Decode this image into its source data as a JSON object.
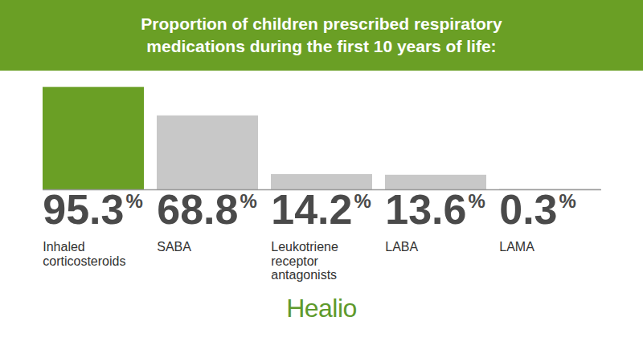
{
  "chart_data": {
    "type": "bar",
    "title": "Proportion of children prescribed respiratory\nmedications during the first 10 years of life:",
    "categories": [
      "Inhaled\ncorticosteroids",
      "SABA",
      "Leukotriene\nreceptor\nantagonists",
      "LABA",
      "LAMA"
    ],
    "values": [
      95.3,
      68.8,
      14.2,
      13.6,
      0.3
    ],
    "value_labels": [
      "95.3%",
      "68.8%",
      "14.2%",
      "13.6%",
      "0.3%"
    ],
    "colors": [
      "#6a9f25",
      "#c8c8c8",
      "#c8c8c8",
      "#c8c8c8",
      "#c8c8c8"
    ],
    "ylim": [
      0,
      100
    ],
    "data_labels": true,
    "tick_labels": false,
    "caption": "Healio"
  }
}
